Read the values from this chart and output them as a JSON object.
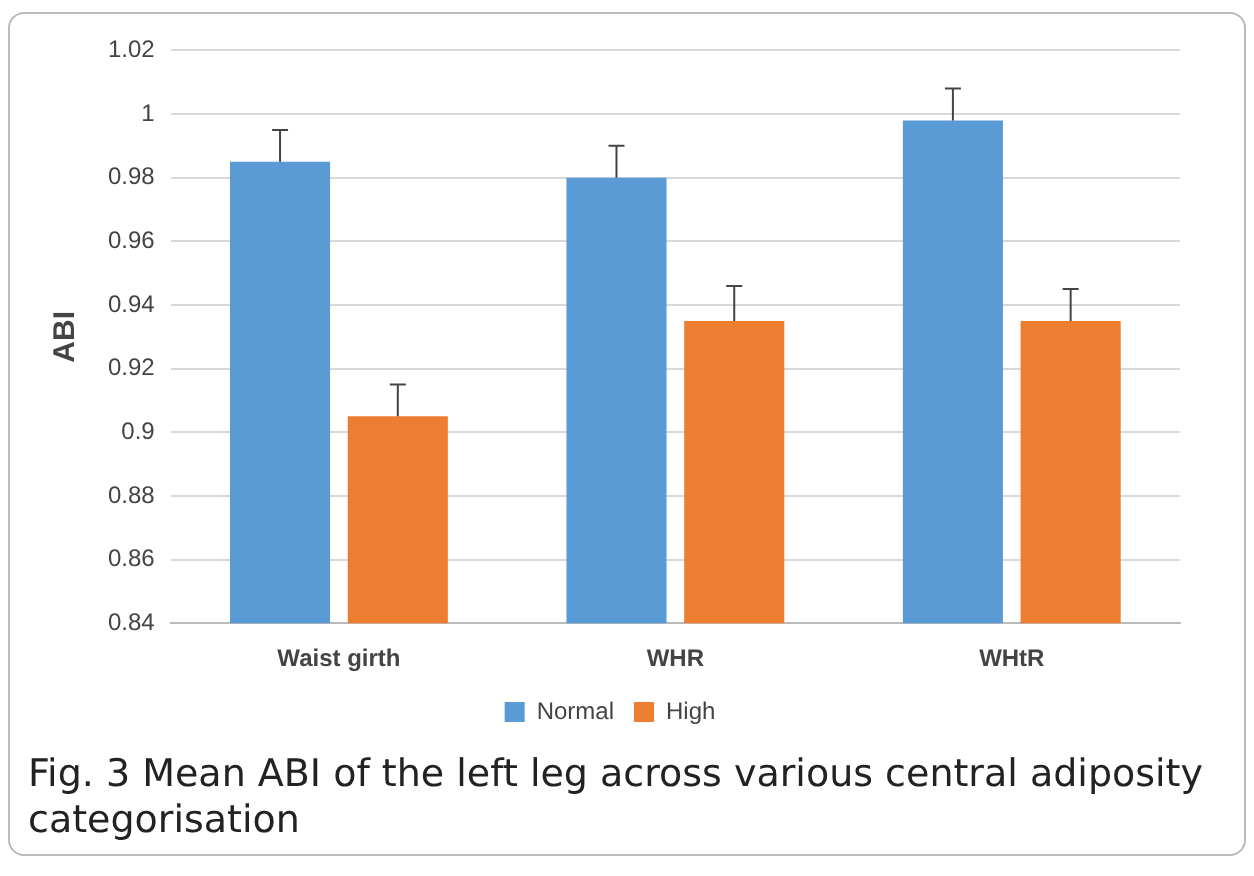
{
  "chart_data": {
    "type": "bar",
    "ylabel": "ABI",
    "categories": [
      "Waist girth",
      "WHR",
      "WHtR"
    ],
    "series": [
      {
        "name": "Normal",
        "color": "#5b9bd5",
        "values": [
          0.985,
          0.98,
          0.998
        ],
        "errors": [
          [
            0.985,
            0.995
          ],
          [
            0.98,
            0.99
          ],
          [
            0.998,
            1.008
          ]
        ]
      },
      {
        "name": "High",
        "color": "#ed7d31",
        "values": [
          0.905,
          0.935,
          0.935
        ],
        "errors": [
          [
            0.905,
            0.915
          ],
          [
            0.935,
            0.946
          ],
          [
            0.935,
            0.945
          ]
        ]
      }
    ],
    "ylim": [
      0.84,
      1.02
    ],
    "yticks": [
      0.84,
      0.86,
      0.88,
      0.9,
      0.92,
      0.94,
      0.96,
      0.98,
      1,
      1.02
    ],
    "grid": "y",
    "legend": "bottom",
    "annotations": [
      "Fig. 3 Mean ABI of the left leg across various central adiposity categorisation"
    ]
  }
}
